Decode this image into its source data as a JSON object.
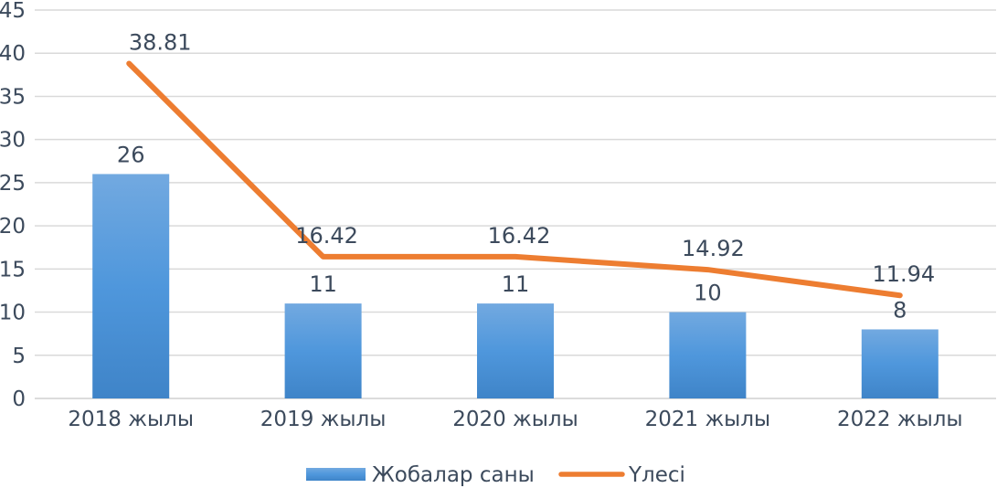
{
  "chart_data": {
    "type": "bar",
    "categories": [
      "2018 жылы",
      "2019 жылы",
      "2020 жылы",
      "2021 жылы",
      "2022 жылы"
    ],
    "ylim": [
      0,
      45
    ],
    "yticks": [
      "0",
      "5",
      "10",
      "15",
      "20",
      "25",
      "30",
      "35",
      "40",
      "45"
    ],
    "grid": true,
    "legend_position": "bottom",
    "series": [
      {
        "name": "Жобалар саны",
        "type": "bar",
        "color": "#4a90d9",
        "values": [
          26,
          11,
          11,
          10,
          8
        ],
        "labels": [
          "26",
          "11",
          "11",
          "10",
          "8"
        ]
      },
      {
        "name": "Үлесі",
        "type": "line",
        "color": "#ed7d31",
        "values": [
          38.81,
          16.42,
          16.42,
          14.92,
          11.94
        ],
        "labels": [
          "38.81",
          "16.42",
          "16.42",
          "14.92",
          "11.94"
        ]
      }
    ]
  }
}
